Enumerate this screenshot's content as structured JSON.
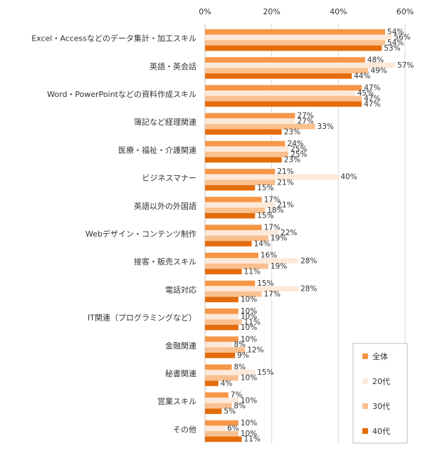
{
  "chart_data": {
    "type": "bar",
    "orientation": "horizontal",
    "categories": [
      "Excel・Accessなどのデータ集計・加工スキル",
      "英語・英会話",
      "Word・PowerPointなどの資料作成スキル",
      "簿記など経理関連",
      "医療・福祉・介護関連",
      "ビジネスマナー",
      "英語以外の外国語",
      "Webデザイン・コンテンツ制作",
      "接客・販売スキル",
      "電話対応",
      "IT関連（プログラミングなど）",
      "金融関連",
      "秘書関連",
      "営業スキル",
      "その他"
    ],
    "series": [
      {
        "name": "全体",
        "color": "#f79646",
        "values": [
          54,
          48,
          47,
          27,
          24,
          21,
          17,
          17,
          16,
          15,
          10,
          10,
          8,
          7,
          10
        ]
      },
      {
        "name": "20代",
        "color": "#fde9d9",
        "values": [
          56,
          57,
          45,
          27,
          25,
          40,
          21,
          22,
          28,
          28,
          10,
          8,
          15,
          10,
          6
        ]
      },
      {
        "name": "30代",
        "color": "#fac090",
        "values": [
          54,
          49,
          47,
          33,
          25,
          21,
          18,
          19,
          19,
          17,
          11,
          12,
          10,
          8,
          10
        ]
      },
      {
        "name": "40代",
        "color": "#e46c0a",
        "values": [
          53,
          44,
          47,
          23,
          23,
          15,
          15,
          14,
          11,
          10,
          10,
          9,
          4,
          5,
          11
        ]
      }
    ],
    "value_suffix": "%",
    "xlim": [
      0,
      60
    ],
    "xticks": [
      "0%",
      "20%",
      "40%",
      "60%"
    ],
    "axis_position": "top",
    "grid": true,
    "legend_position": "bottom-right"
  }
}
